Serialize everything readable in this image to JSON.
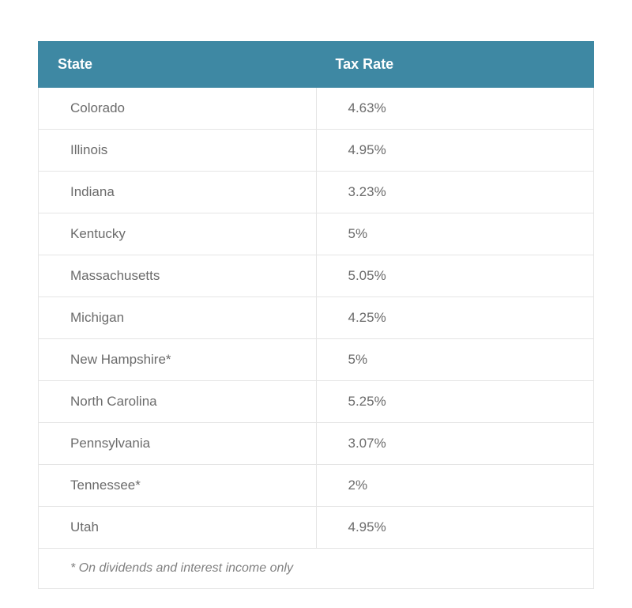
{
  "table": {
    "type": "table",
    "header_bg_color": "#3e88a3",
    "header_text_color": "#ffffff",
    "cell_text_color": "#6b6b6b",
    "border_color": "#e5e5e5",
    "background_color": "#ffffff",
    "font_family": "Segoe UI, Helvetica Neue, Arial, sans-serif",
    "header_fontsize": 18,
    "cell_fontsize": 17,
    "footnote_fontsize": 16,
    "columns": [
      {
        "label": "State",
        "width_pct": 50
      },
      {
        "label": "Tax Rate",
        "width_pct": 50
      }
    ],
    "rows": [
      {
        "state": "Colorado",
        "rate": "4.63%"
      },
      {
        "state": "Illinois",
        "rate": "4.95%"
      },
      {
        "state": "Indiana",
        "rate": "3.23%"
      },
      {
        "state": "Kentucky",
        "rate": "5%"
      },
      {
        "state": "Massachusetts",
        "rate": "5.05%"
      },
      {
        "state": "Michigan",
        "rate": "4.25%"
      },
      {
        "state": "New Hampshire*",
        "rate": "5%"
      },
      {
        "state": "North Carolina",
        "rate": "5.25%"
      },
      {
        "state": "Pennsylvania",
        "rate": "3.07%"
      },
      {
        "state": "Tennessee*",
        "rate": "2%"
      },
      {
        "state": "Utah",
        "rate": "4.95%"
      }
    ],
    "footnote": "* On dividends and interest income only"
  }
}
